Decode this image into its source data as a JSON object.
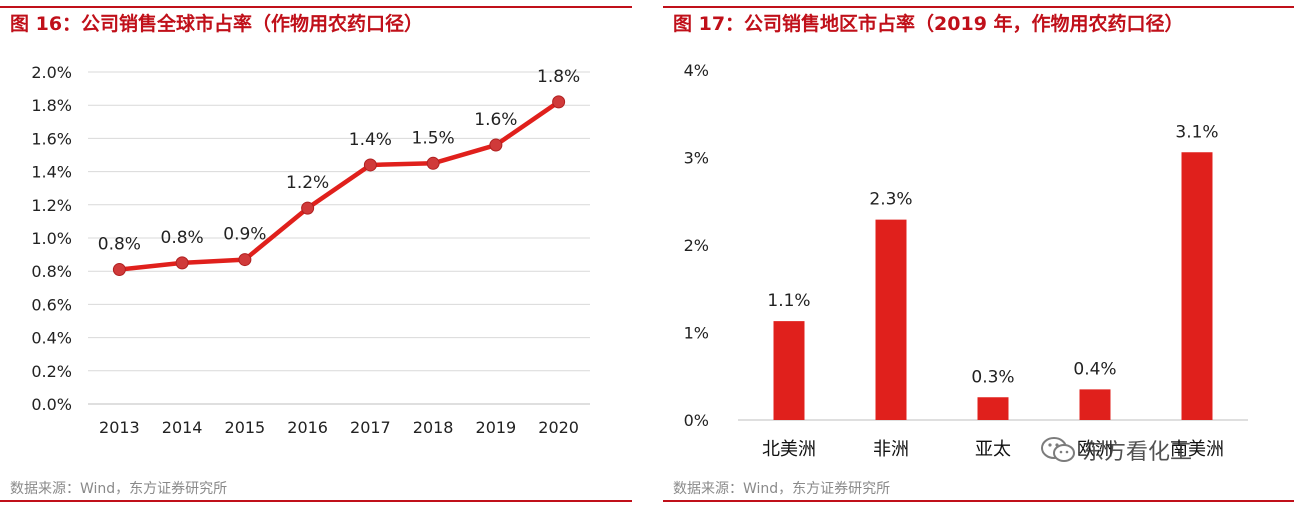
{
  "left": {
    "title": "图 16：公司销售全球市占率（作物用农药口径）",
    "source": "数据来源：Wind，东方证券研究所"
  },
  "right": {
    "title": "图 17：公司销售地区市占率（2019 年，作物用农药口径）",
    "source": "数据来源：Wind，东方证券研究所"
  },
  "watermark": {
    "text": "东方看化工",
    "icon": "wechat-icon"
  },
  "colors": {
    "accent": "#c0101a",
    "line": "#e0201c",
    "marker": "#d03a3a",
    "bar": "#e0201c"
  },
  "chart_data": [
    {
      "type": "line",
      "x": [
        "2013",
        "2014",
        "2015",
        "2016",
        "2017",
        "2018",
        "2019",
        "2020"
      ],
      "values": [
        0.81,
        0.85,
        0.87,
        1.18,
        1.44,
        1.45,
        1.56,
        1.82
      ],
      "data_labels": [
        "0.8%",
        "0.8%",
        "0.9%",
        "1.2%",
        "1.4%",
        "1.5%",
        "1.6%",
        "1.8%"
      ],
      "yticks": [
        "0.0%",
        "0.2%",
        "0.4%",
        "0.6%",
        "0.8%",
        "1.0%",
        "1.2%",
        "1.4%",
        "1.6%",
        "1.8%",
        "2.0%"
      ],
      "ylim": [
        0,
        2.0
      ],
      "grid": true,
      "legend": "none"
    },
    {
      "type": "bar",
      "categories": [
        "北美洲",
        "非洲",
        "亚太",
        "欧洲",
        "南美洲"
      ],
      "values": [
        1.13,
        2.29,
        0.26,
        0.35,
        3.06
      ],
      "data_labels": [
        "1.1%",
        "2.3%",
        "0.3%",
        "0.4%",
        "3.1%"
      ],
      "yticks": [
        "0%",
        "1%",
        "2%",
        "3%",
        "4%"
      ],
      "ylim": [
        0,
        4
      ],
      "grid": false,
      "legend": "none"
    }
  ]
}
